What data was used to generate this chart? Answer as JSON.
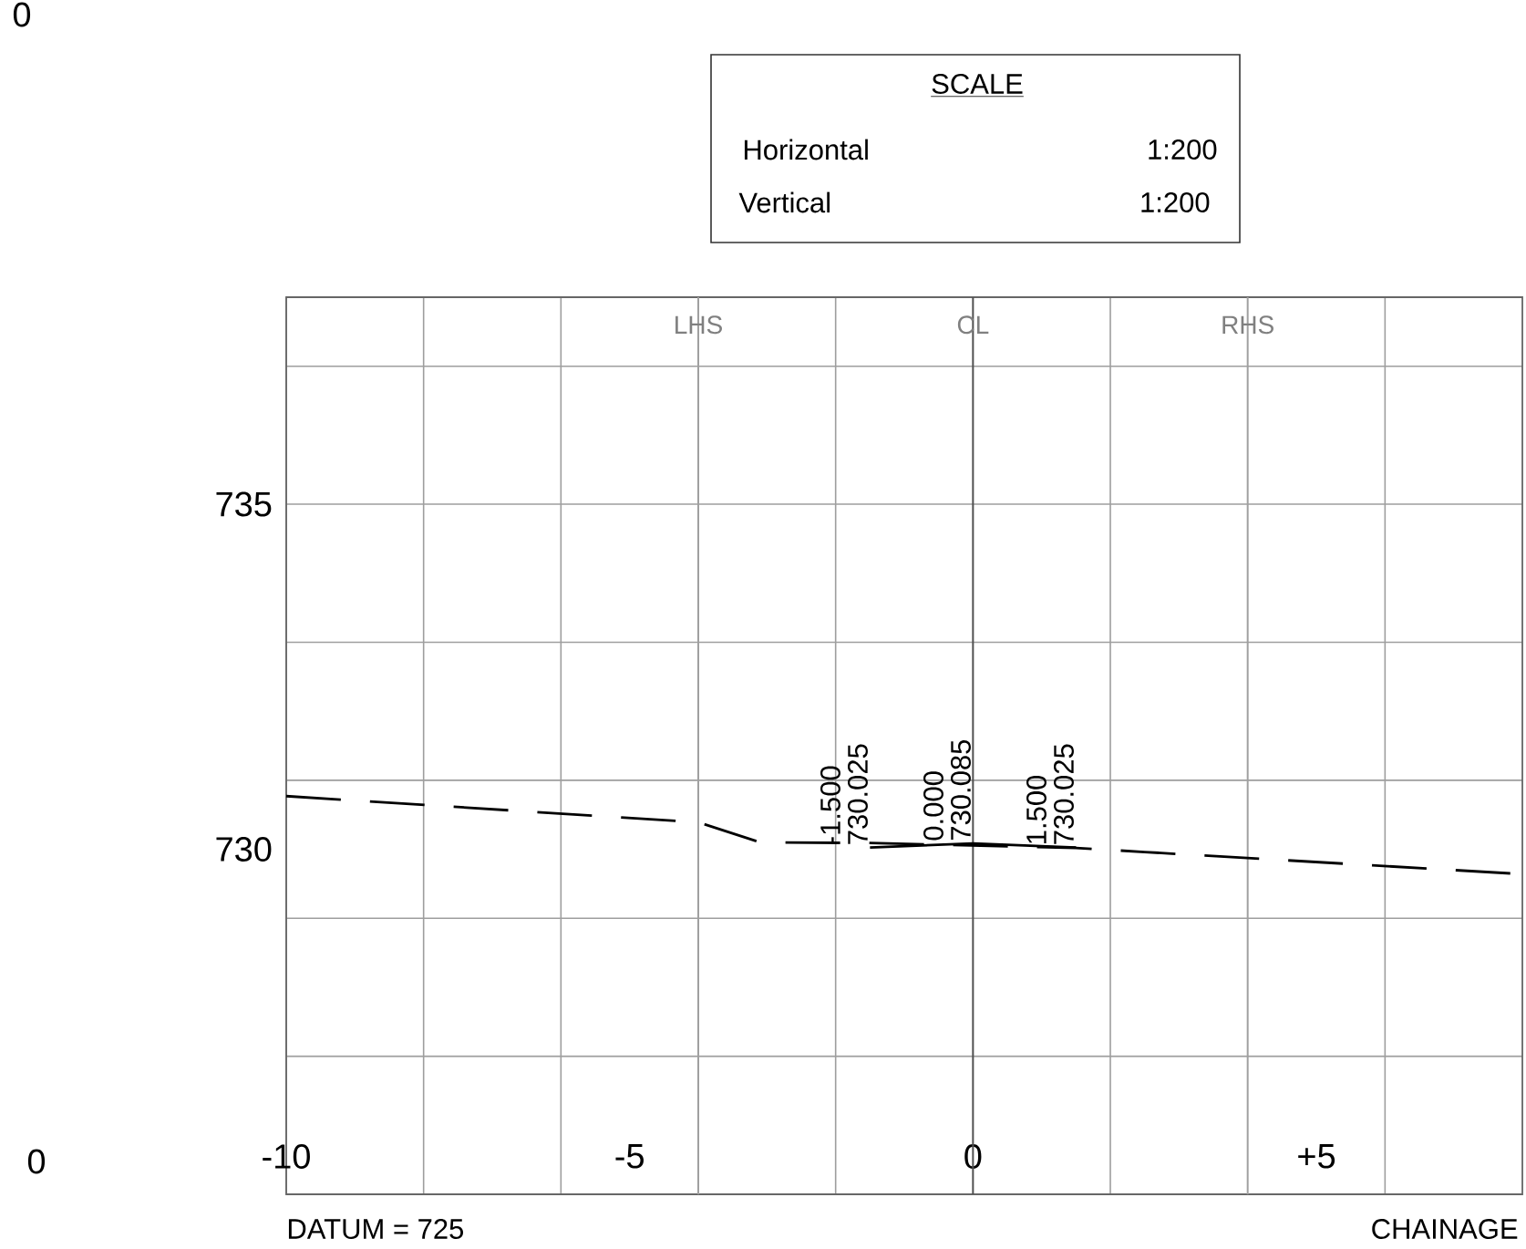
{
  "chart_data": {
    "type": "line",
    "xlabel": "CHAINAGE",
    "series": [
      {
        "color": "#000000",
        "line_style": "dashed",
        "x": [
          -10,
          -4,
          -3.1,
          -1.5,
          1.5,
          2.5,
          8
        ],
        "values": [
          730.77,
          730.39,
          730.1,
          730.09,
          730.02,
          729.96,
          729.64
        ]
      },
      {
        "color": "#000000",
        "line_style": "solid",
        "x": [
          -1.5,
          0,
          1.5
        ],
        "values": [
          730.025,
          730.085,
          730.025
        ],
        "value_labels": [
          "-1.500 730.025",
          "0.000 730.085",
          "1.500 730.025"
        ]
      }
    ],
    "xlim": [
      -10,
      8
    ],
    "ylim": [
      725,
      738
    ],
    "xticks": [
      -10,
      {
        "value": -8,
        "label": null
      },
      {
        "value": -6,
        "label": null
      },
      -5,
      {
        "value": -2,
        "label": null
      },
      0,
      {
        "value": 2,
        "label": null
      },
      {
        "value": 5,
        "label": "+5"
      },
      {
        "value": 6,
        "label": null
      }
    ],
    "yticks": [
      {
        "value": 727,
        "label": null
      },
      {
        "value": 729,
        "label": null
      },
      730,
      {
        "value": 731,
        "label": null
      },
      {
        "value": 733,
        "label": null
      },
      735,
      {
        "value": 737,
        "label": null
      }
    ],
    "grid": true,
    "marker": "none",
    "ref_lines": [
      {
        "axis": "x",
        "value": -4,
        "label": "LHS",
        "color": "#a0a0a0"
      },
      {
        "axis": "x",
        "value": 0,
        "label": "CL",
        "color": "#505050"
      },
      {
        "axis": "x",
        "value": 4,
        "label": "RHS",
        "color": "#a0a0a0"
      }
    ],
    "annotations": [
      "SCALE",
      "Horizontal",
      "1:200",
      "Vertical",
      "1:200",
      "DATUM = 725",
      "0",
      "0"
    ]
  }
}
